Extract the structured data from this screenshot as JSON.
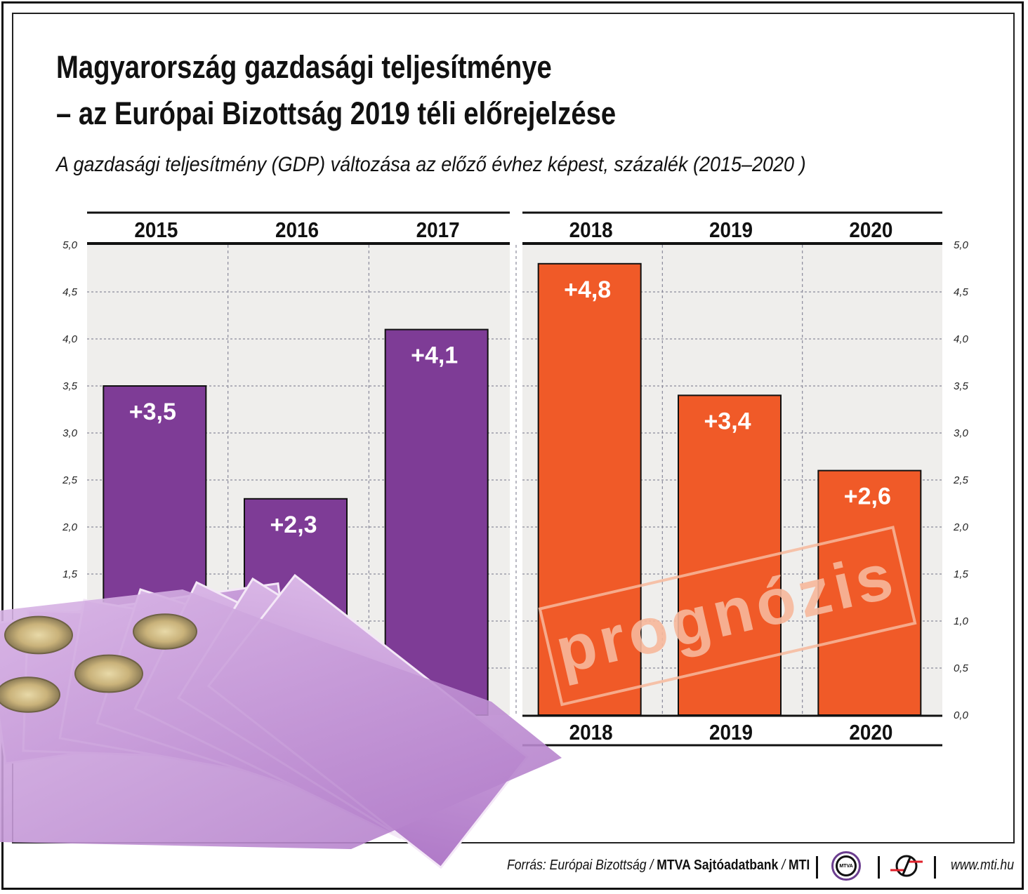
{
  "title_line1": "Magyarország gazdasági teljesítménye",
  "title_line2": "– az Európai Bizottság 2019 téli előrejelzése",
  "subtitle": "A gazdasági teljesítmény (GDP) változása az előző évhez képest, százalék (2015–2020 )",
  "stamp": "prognózis",
  "footer": {
    "source_prefix": "Forrás: Európai Bizottság / ",
    "source_bold": "MTVA Sajtóadatbank",
    "source_sep": " / ",
    "source_mti": "MTI",
    "logo_mtva": "MTVA",
    "url": "www.mti.hu"
  },
  "colors": {
    "actual": "#7e3c96",
    "forecast": "#f05a28",
    "plot_bg": "#efeeec",
    "stamp": "#f7b89c"
  },
  "chart_data": {
    "type": "bar",
    "categories": [
      "2015",
      "2016",
      "2017",
      "2018",
      "2019",
      "2020"
    ],
    "values": [
      3.5,
      2.3,
      4.1,
      4.8,
      3.4,
      2.6
    ],
    "data_labels": [
      "+3,5",
      "+2,3",
      "+4,1",
      "+4,8",
      "+3,4",
      "+2,6"
    ],
    "forecast": [
      false,
      false,
      false,
      true,
      true,
      true
    ],
    "yticks": [
      "0,0",
      "0,5",
      "1,0",
      "1,5",
      "2,0",
      "2,5",
      "3,0",
      "3,5",
      "4,0",
      "4,5",
      "5,0"
    ],
    "ylim": [
      0,
      5
    ],
    "grid": true,
    "xlabel": "",
    "ylabel": ""
  }
}
